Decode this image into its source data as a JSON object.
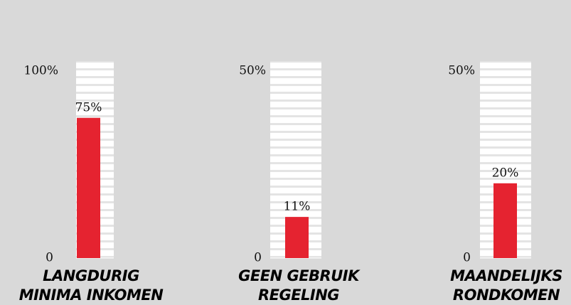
{
  "chart_data": [
    {
      "type": "bar",
      "title": "LANGDURIG MINIMA INKOMEN",
      "values": [
        75
      ],
      "value_labels": [
        "75%"
      ],
      "color": "#e52330",
      "ylim": [
        0,
        100
      ],
      "yticks": [
        0,
        {
          "value": 100,
          "label": "100%"
        }
      ]
    },
    {
      "type": "bar",
      "title": "GEEN GEBRUIK REGELING",
      "values": [
        11
      ],
      "value_labels": [
        "11%"
      ],
      "color": "#e52330",
      "ylim": [
        0,
        50
      ],
      "yticks": [
        0,
        {
          "value": 50,
          "label": "50%"
        }
      ]
    },
    {
      "type": "bar",
      "title": "MAANDELIJKS RONDKOMEN",
      "values": [
        20
      ],
      "value_labels": [
        "20%"
      ],
      "color": "#e52330",
      "ylim": [
        0,
        50
      ],
      "yticks": [
        0,
        {
          "value": 50,
          "label": "50%"
        }
      ]
    }
  ]
}
